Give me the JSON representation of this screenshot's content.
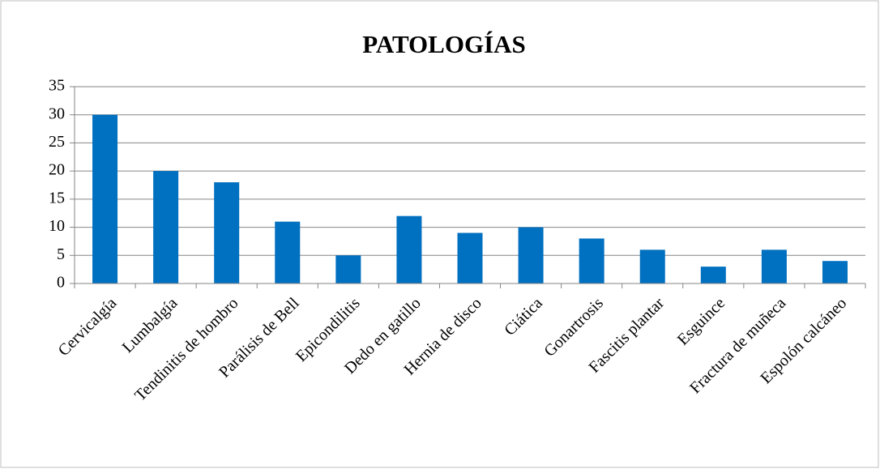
{
  "chart_data": {
    "type": "bar",
    "title": "PATOLOGÍAS",
    "categories": [
      "Cervicalgía",
      "Lumbalgía",
      "Tendinitis de hombro",
      "Parálisis de Bell",
      "Epicondilitis",
      "Dedo en gatillo",
      "Hernia de disco",
      "Ciática",
      "Gonartrosis",
      "Fascitis plantar",
      "Esguince",
      "Fractura de muñeca",
      "Espolón calcáneo"
    ],
    "values": [
      30,
      20,
      18,
      11,
      5,
      12,
      9,
      10,
      8,
      6,
      3,
      6,
      4
    ],
    "color": "#0070c0",
    "ylim": [
      0,
      35
    ],
    "yticks": [
      0,
      5,
      10,
      15,
      20,
      25,
      30,
      35
    ],
    "grid": true
  }
}
